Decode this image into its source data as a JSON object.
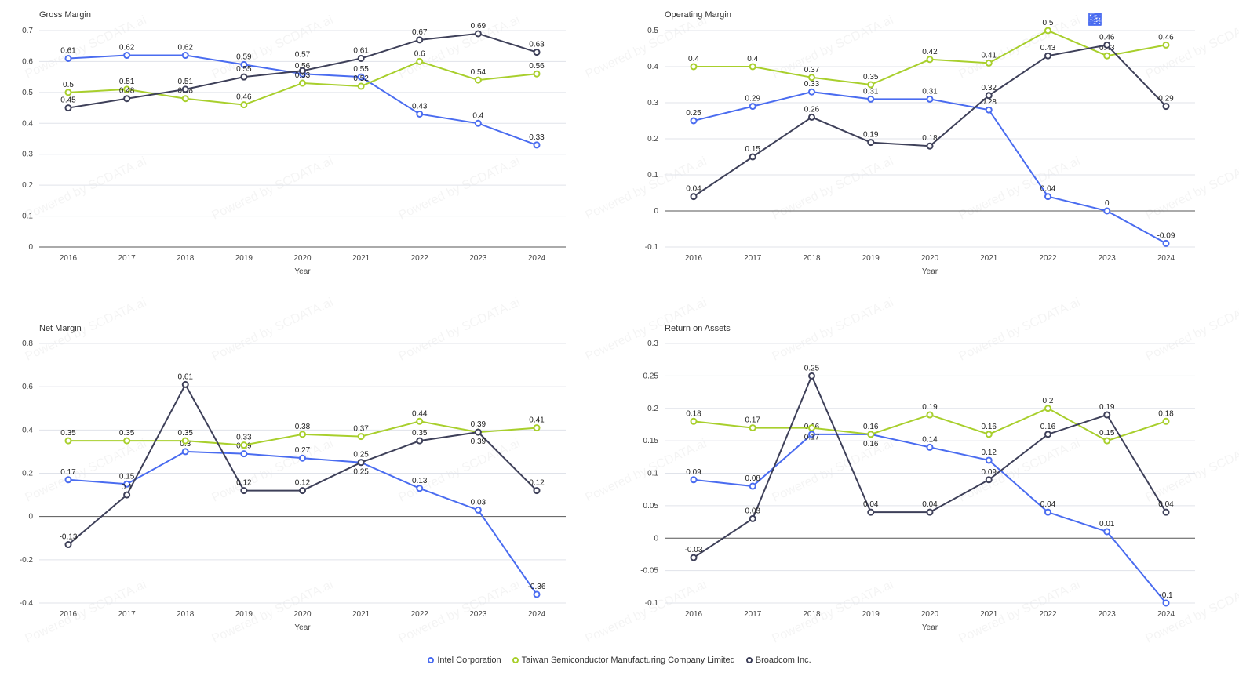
{
  "series_colors": {
    "Intel Corporation": "#4a6cf0",
    "Taiwan Semiconductor Manufacturing Company Limited": "#a8cf2c",
    "Broadcom Inc.": "#3e4059"
  },
  "legend": [
    "Intel Corporation",
    "Taiwan Semiconductor Manufacturing Company Limited",
    "Broadcom Inc."
  ],
  "toolbox": [
    "line-chart-icon",
    "tag-icon",
    "data-table-icon",
    "download-icon",
    "refresh-icon"
  ],
  "watermark": "Powered by SCDATA.ai",
  "chart_data": [
    {
      "type": "line",
      "title": "Gross Margin",
      "xlabel": "Year",
      "ylabel": "",
      "categories": [
        "2016",
        "2017",
        "2018",
        "2019",
        "2020",
        "2021",
        "2022",
        "2023",
        "2024"
      ],
      "ylim": [
        0,
        0.7
      ],
      "yticks": [
        0,
        0.1,
        0.2,
        0.3,
        0.4,
        0.5,
        0.6,
        0.7
      ],
      "grid": true,
      "series": [
        {
          "name": "Intel Corporation",
          "values": [
            0.61,
            0.62,
            0.62,
            0.59,
            0.56,
            0.55,
            0.43,
            0.4,
            0.33
          ]
        },
        {
          "name": "Taiwan Semiconductor Manufacturing Company Limited",
          "values": [
            0.5,
            0.51,
            0.48,
            0.46,
            0.53,
            0.52,
            0.6,
            0.54,
            0.56
          ]
        },
        {
          "name": "Broadcom Inc.",
          "values": [
            0.45,
            0.48,
            0.51,
            0.55,
            0.57,
            0.61,
            0.67,
            0.69,
            0.63
          ]
        }
      ]
    },
    {
      "type": "line",
      "title": "Operating Margin",
      "xlabel": "Year",
      "ylabel": "",
      "categories": [
        "2016",
        "2017",
        "2018",
        "2019",
        "2020",
        "2021",
        "2022",
        "2023",
        "2024"
      ],
      "ylim": [
        -0.1,
        0.5
      ],
      "yticks": [
        -0.1,
        0,
        0.1,
        0.2,
        0.3,
        0.4,
        0.5
      ],
      "grid": true,
      "series": [
        {
          "name": "Intel Corporation",
          "values": [
            0.25,
            0.29,
            0.33,
            0.31,
            0.31,
            0.28,
            0.04,
            0,
            -0.09
          ]
        },
        {
          "name": "Taiwan Semiconductor Manufacturing Company Limited",
          "values": [
            0.4,
            0.4,
            0.37,
            0.35,
            0.42,
            0.41,
            0.5,
            0.43,
            0.46
          ]
        },
        {
          "name": "Broadcom Inc.",
          "values": [
            0.04,
            0.15,
            0.26,
            0.19,
            0.18,
            0.32,
            0.43,
            0.46,
            0.29
          ]
        }
      ]
    },
    {
      "type": "line",
      "title": "Net Margin",
      "xlabel": "Year",
      "ylabel": "",
      "categories": [
        "2016",
        "2017",
        "2018",
        "2019",
        "2020",
        "2021",
        "2022",
        "2023",
        "2024"
      ],
      "ylim": [
        -0.4,
        0.8
      ],
      "yticks": [
        -0.4,
        -0.2,
        0,
        0.2,
        0.4,
        0.6,
        0.8
      ],
      "grid": true,
      "series": [
        {
          "name": "Intel Corporation",
          "values": [
            0.17,
            0.15,
            0.3,
            0.29,
            0.27,
            0.25,
            0.13,
            0.03,
            -0.36
          ]
        },
        {
          "name": "Taiwan Semiconductor Manufacturing Company Limited",
          "values": [
            0.35,
            0.35,
            0.35,
            0.33,
            0.38,
            0.37,
            0.44,
            0.39,
            0.41
          ]
        },
        {
          "name": "Broadcom Inc.",
          "values": [
            -0.13,
            0.1,
            0.61,
            0.12,
            0.12,
            0.25,
            0.35,
            0.39,
            0.12
          ]
        }
      ]
    },
    {
      "type": "line",
      "title": "Return on Assets",
      "xlabel": "Year",
      "ylabel": "",
      "categories": [
        "2016",
        "2017",
        "2018",
        "2019",
        "2020",
        "2021",
        "2022",
        "2023",
        "2024"
      ],
      "ylim": [
        -0.1,
        0.3
      ],
      "yticks": [
        -0.1,
        -0.05,
        0,
        0.05,
        0.1,
        0.15,
        0.2,
        0.25,
        0.3
      ],
      "grid": true,
      "series": [
        {
          "name": "Intel Corporation",
          "values": [
            0.09,
            0.08,
            0.16,
            0.16,
            0.14,
            0.12,
            0.04,
            0.01,
            -0.1
          ]
        },
        {
          "name": "Taiwan Semiconductor Manufacturing Company Limited",
          "values": [
            0.18,
            0.17,
            0.17,
            0.16,
            0.19,
            0.16,
            0.2,
            0.15,
            0.18
          ]
        },
        {
          "name": "Broadcom Inc.",
          "values": [
            -0.03,
            0.03,
            0.25,
            0.04,
            0.04,
            0.09,
            0.16,
            0.19,
            0.04
          ]
        }
      ]
    }
  ]
}
